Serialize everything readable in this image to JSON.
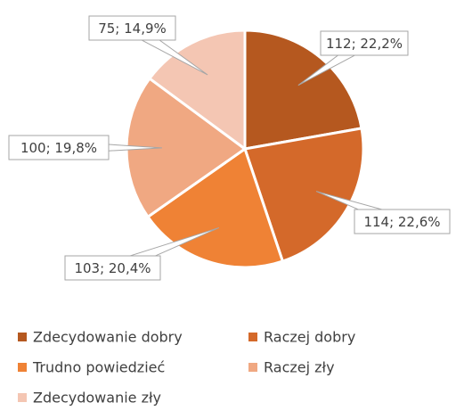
{
  "chart_data": {
    "type": "pie",
    "categories": [
      "Zdecydowanie dobry",
      "Raczej dobry",
      "Trudno powiedzieć",
      "Raczej zły",
      "Zdecydowanie zły"
    ],
    "values": [
      112,
      114,
      103,
      100,
      75
    ],
    "value_labels": [
      "112; 22,2%",
      "114; 22,6%",
      "103; 20,4%",
      "100; 19,8%",
      "75; 14,9%"
    ],
    "colors": [
      "#b5581f",
      "#d4692a",
      "#ef8235",
      "#f0a882",
      "#f4c6b3"
    ],
    "legend": "bottom"
  }
}
